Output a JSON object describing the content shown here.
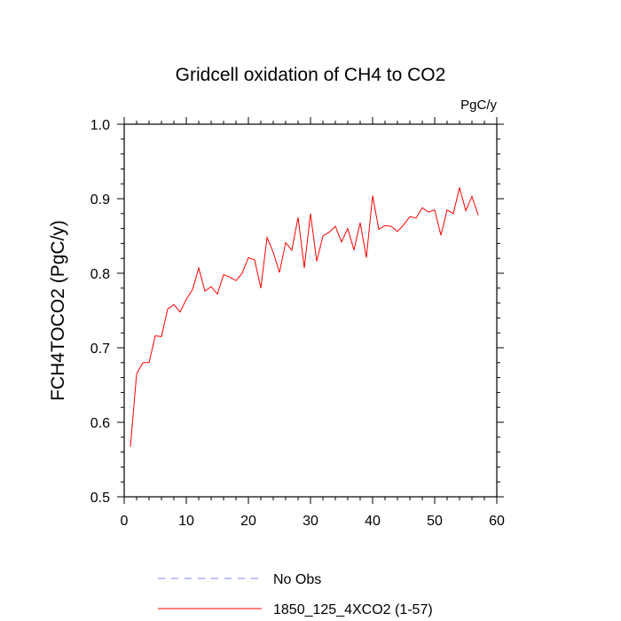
{
  "chart_data": {
    "type": "line",
    "title": "Gridcell oxidation of CH4 to CO2",
    "units": "PgC/y",
    "xlabel": "",
    "ylabel": "FCH4TOCO2  (PgC/y)",
    "xlim": [
      0,
      60
    ],
    "ylim": [
      0.5,
      1.0
    ],
    "x_ticks": [
      0,
      10,
      20,
      30,
      40,
      50,
      60
    ],
    "y_ticks": [
      0.5,
      0.6,
      0.7,
      0.8,
      0.9,
      1.0
    ],
    "y_tick_labels": [
      "0.5",
      "0.6",
      "0.7",
      "0.8",
      "0.9",
      "1.0"
    ],
    "grid": false,
    "series": [
      {
        "name": "1850_125_4XCO2 (1-57)",
        "color": "#ff0000",
        "style": "solid",
        "x": [
          1,
          2,
          3,
          4,
          5,
          6,
          7,
          8,
          9,
          10,
          11,
          12,
          13,
          14,
          15,
          16,
          17,
          18,
          19,
          20,
          21,
          22,
          23,
          24,
          25,
          26,
          27,
          28,
          29,
          30,
          31,
          32,
          33,
          34,
          35,
          36,
          37,
          38,
          39,
          40,
          41,
          42,
          43,
          44,
          45,
          46,
          47,
          48,
          49,
          50,
          51,
          52,
          53,
          54,
          55,
          56,
          57
        ],
        "values": [
          0.567,
          0.665,
          0.68,
          0.68,
          0.716,
          0.715,
          0.752,
          0.758,
          0.748,
          0.765,
          0.778,
          0.807,
          0.776,
          0.782,
          0.772,
          0.798,
          0.795,
          0.79,
          0.8,
          0.821,
          0.818,
          0.78,
          0.848,
          0.828,
          0.801,
          0.841,
          0.831,
          0.875,
          0.807,
          0.88,
          0.816,
          0.85,
          0.855,
          0.863,
          0.842,
          0.86,
          0.831,
          0.868,
          0.821,
          0.904,
          0.859,
          0.864,
          0.863,
          0.856,
          0.865,
          0.876,
          0.874,
          0.888,
          0.882,
          0.885,
          0.851,
          0.885,
          0.88,
          0.915,
          0.884,
          0.903,
          0.878
        ]
      },
      {
        "name": "No Obs",
        "color": "#8080ff",
        "style": "dashed",
        "x": [],
        "values": []
      }
    ],
    "legend": [
      "No Obs",
      "1850_125_4XCO2 (1-57)"
    ],
    "legend_position": "bottom-center"
  }
}
